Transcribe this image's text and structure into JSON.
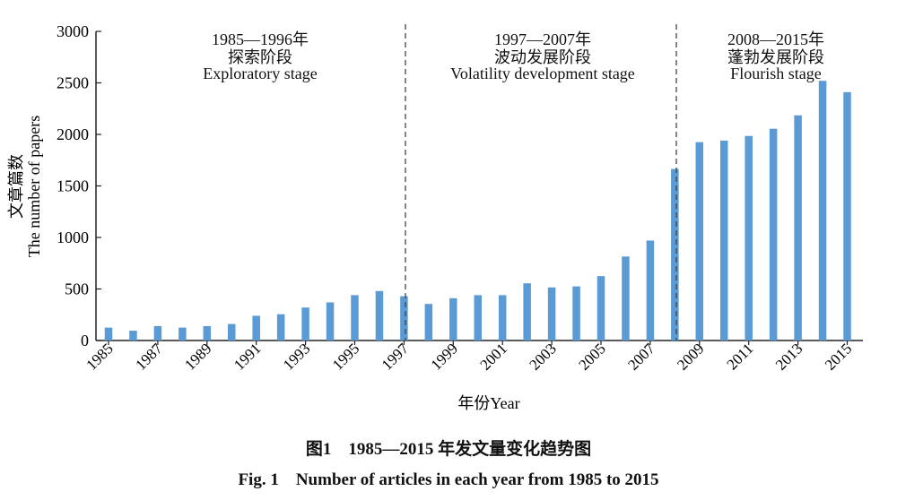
{
  "chart_data": {
    "type": "bar",
    "xlabel": "年份Year",
    "ylabel_cn": "文章篇数",
    "ylabel_en": "The number of papers",
    "ylim": [
      0,
      3000
    ],
    "yticks": [
      0,
      500,
      1000,
      1500,
      2000,
      2500,
      3000
    ],
    "categories": [
      "1985",
      "1986",
      "1987",
      "1988",
      "1989",
      "1990",
      "1991",
      "1992",
      "1993",
      "1994",
      "1995",
      "1996",
      "1997",
      "1998",
      "1999",
      "2000",
      "2001",
      "2002",
      "2003",
      "2004",
      "2005",
      "2006",
      "2007",
      "2008",
      "2009",
      "2010",
      "2011",
      "2012",
      "2013",
      "2014",
      "2015"
    ],
    "tick_labels": [
      "1985",
      "1987",
      "1989",
      "1991",
      "1993",
      "1995",
      "1997",
      "1999",
      "2001",
      "2003",
      "2005",
      "2007",
      "2009",
      "2011",
      "2013",
      "2015"
    ],
    "values": [
      125,
      95,
      140,
      125,
      140,
      160,
      240,
      255,
      320,
      370,
      440,
      480,
      430,
      355,
      410,
      440,
      440,
      555,
      515,
      525,
      625,
      815,
      970,
      1665,
      1925,
      1940,
      1985,
      2055,
      2185,
      2520,
      2410
    ],
    "bar_color": "#5b9bd5",
    "stages": [
      {
        "range": "1985—1996年",
        "name_cn": "探索阶段",
        "name_en": "Exploratory stage"
      },
      {
        "range": "1997—2007年",
        "name_cn": "波动发展阶段",
        "name_en": "Volatility development stage"
      },
      {
        "range": "2008—2015年",
        "name_cn": "蓬勃发展阶段",
        "name_en": "Flourish stage"
      }
    ]
  },
  "caption": {
    "cn": "图1　1985—2015 年发文量变化趋势图",
    "en": "Fig. 1　Number of articles in each year from 1985 to 2015"
  }
}
